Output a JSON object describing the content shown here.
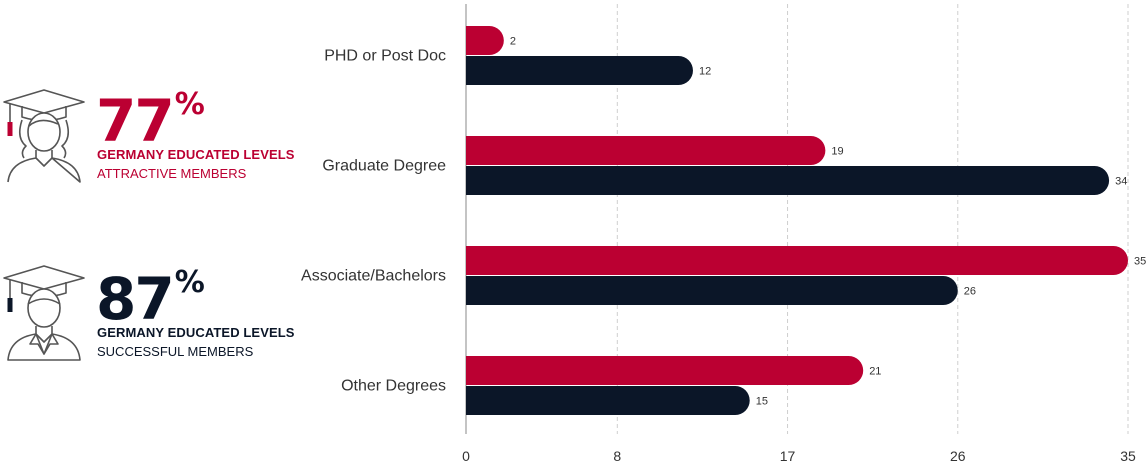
{
  "stats": [
    {
      "value": "77",
      "unit": "%",
      "line1": "GERMANY EDUCATED LEVELS",
      "line2": "ATTRACTIVE MEMBERS",
      "color": "#bb0032",
      "icon": "female-graduate-icon"
    },
    {
      "value": "87",
      "unit": "%",
      "line1": "GERMANY EDUCATED LEVELS",
      "line2": "SUCCESSFUL MEMBERS",
      "color": "#0b1628",
      "icon": "male-graduate-icon"
    }
  ],
  "chart_data": {
    "type": "bar",
    "orientation": "horizontal",
    "categories": [
      "PHD or Post Doc",
      "Graduate Degree",
      "Associate/Bachelors",
      "Other Degrees"
    ],
    "series": [
      {
        "values": [
          2,
          19,
          35,
          21
        ],
        "color": "#bb0032"
      },
      {
        "values": [
          12,
          34,
          26,
          15
        ],
        "color": "#0b1628"
      }
    ],
    "xticks": [
      0,
      8,
      17,
      26,
      35
    ],
    "xlim": [
      0,
      35
    ],
    "grid": "vertical dashed",
    "data_labels": true
  }
}
